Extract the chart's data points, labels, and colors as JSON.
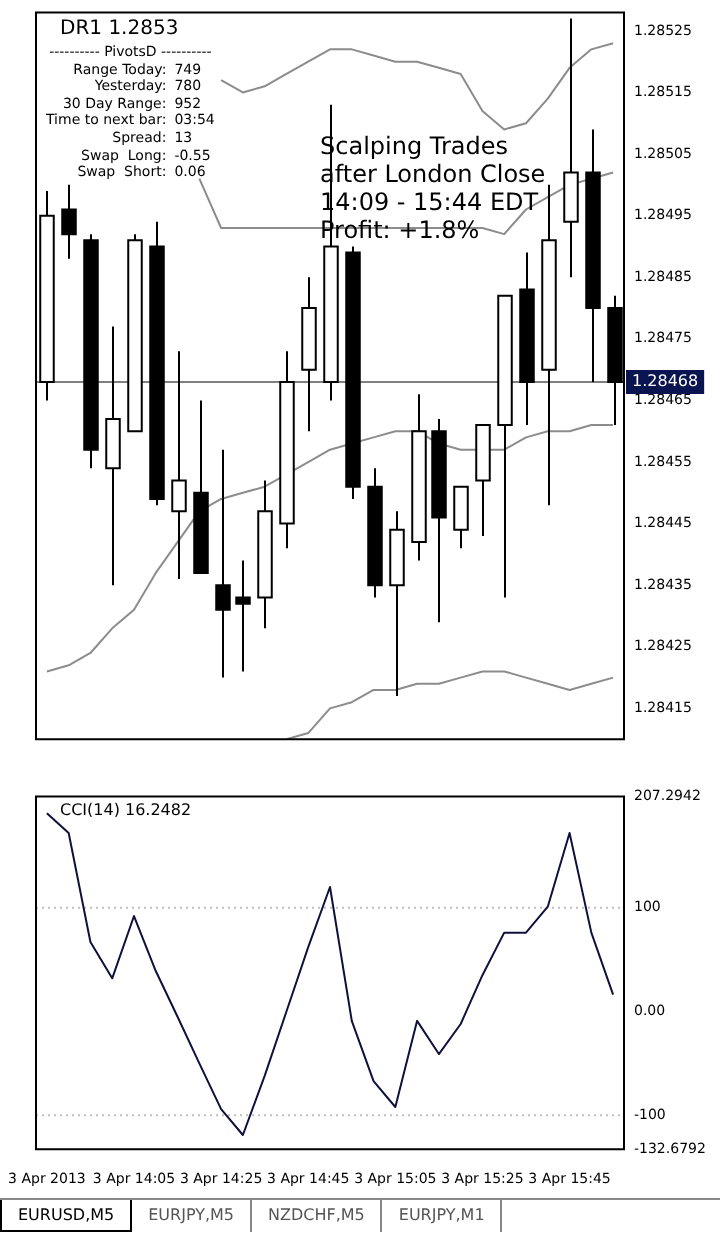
{
  "chart_data": [
    {
      "type": "candlestick",
      "title": "DR1 1.2853",
      "categories": [
        null,
        null,
        null,
        null,
        null,
        null,
        null,
        null,
        null,
        null,
        null,
        null,
        null,
        null,
        null,
        null,
        null,
        null,
        null,
        null,
        null,
        null,
        null,
        null,
        null,
        null,
        null
      ],
      "ohlc": [
        [
          1.28468,
          1.28499,
          1.28465,
          1.28495
        ],
        [
          1.28496,
          1.285,
          1.28488,
          1.28492
        ],
        [
          1.28491,
          1.28492,
          1.28454,
          1.28457
        ],
        [
          1.28454,
          1.28477,
          1.28435,
          1.28462
        ],
        [
          1.2846,
          1.28492,
          1.2846,
          1.28491
        ],
        [
          1.2849,
          1.28494,
          1.28448,
          1.28449
        ],
        [
          1.28447,
          1.28473,
          1.28436,
          1.28452
        ],
        [
          1.2845,
          1.28465,
          1.28437,
          1.28437
        ],
        [
          1.28435,
          1.28457,
          1.2842,
          1.28431
        ],
        [
          1.28433,
          1.28439,
          1.28421,
          1.28432
        ],
        [
          1.28433,
          1.28452,
          1.28428,
          1.28447
        ],
        [
          1.28445,
          1.28473,
          1.28441,
          1.28468
        ],
        [
          1.2847,
          1.28485,
          1.2846,
          1.2848
        ],
        [
          1.28468,
          1.28513,
          1.28465,
          1.2849
        ],
        [
          1.28489,
          1.2849,
          1.28449,
          1.28451
        ],
        [
          1.28451,
          1.28454,
          1.28433,
          1.28435
        ],
        [
          1.28435,
          1.28447,
          1.28417,
          1.28444
        ],
        [
          1.28442,
          1.28466,
          1.28439,
          1.2846
        ],
        [
          1.2846,
          1.28462,
          1.28429,
          1.28446
        ],
        [
          1.28444,
          1.28451,
          1.28441,
          1.28451
        ],
        [
          1.28452,
          1.28461,
          1.28443,
          1.28461
        ],
        [
          1.28461,
          1.28482,
          1.28433,
          1.28482
        ],
        [
          1.28483,
          1.28489,
          1.28461,
          1.28468
        ],
        [
          1.2847,
          1.285,
          1.28448,
          1.28491
        ],
        [
          1.28494,
          1.28527,
          1.28485,
          1.28502
        ],
        [
          1.28502,
          1.28509,
          1.28468,
          1.2848
        ],
        [
          1.2848,
          1.28482,
          1.28461,
          1.28468
        ]
      ],
      "series": [
        {
          "type": "line",
          "color": "#8c8c8c",
          "values": [
            null,
            null,
            null,
            null,
            null,
            null,
            null,
            null,
            1.28517,
            1.28515,
            1.28516,
            1.28518,
            1.2852,
            1.28522,
            1.28522,
            1.28521,
            1.2852,
            1.2852,
            1.28519,
            1.28518,
            1.28512,
            1.28509,
            1.2851,
            1.28514,
            1.28519,
            1.28522,
            1.28523
          ]
        },
        {
          "type": "line",
          "color": "#8c8c8c",
          "values": [
            null,
            null,
            null,
            null,
            null,
            null,
            null,
            1.28501,
            1.28493,
            1.28493,
            1.28493,
            1.28493,
            1.28493,
            1.28493,
            1.28493,
            1.28493,
            1.28493,
            1.28493,
            1.28493,
            1.28493,
            1.28493,
            1.28492,
            1.28496,
            1.28498,
            1.285,
            1.28501,
            1.28502
          ]
        },
        {
          "type": "line",
          "color": "#8c8c8c",
          "values": [
            1.28421,
            1.28422,
            1.28424,
            1.28428,
            1.28431,
            1.28437,
            1.28442,
            1.28447,
            1.28449,
            1.2845,
            1.28451,
            1.28453,
            1.28455,
            1.28457,
            1.28458,
            1.28459,
            1.2846,
            1.2846,
            1.28458,
            1.28457,
            1.28457,
            1.28457,
            1.28459,
            1.2846,
            1.2846,
            1.28461,
            1.28461
          ]
        },
        {
          "type": "line",
          "color": "#8c8c8c",
          "values": [
            null,
            null,
            null,
            null,
            null,
            null,
            null,
            null,
            null,
            null,
            null,
            1.2841,
            1.28411,
            1.28415,
            1.28416,
            1.28418,
            1.28418,
            1.28419,
            1.28419,
            1.2842,
            1.28421,
            1.28421,
            1.2842,
            1.28419,
            1.28418,
            1.28419,
            1.2842
          ]
        }
      ],
      "ylim": [
        1.2841,
        1.28528
      ],
      "yticks": [
        1.28415,
        1.28425,
        1.28435,
        1.28445,
        1.28455,
        1.28465,
        1.28475,
        1.28485,
        1.28495,
        1.28505,
        1.28515,
        1.28525
      ],
      "ref_lines": [
        {
          "axis": "y",
          "value": 1.28468,
          "label": "1.28468",
          "color": "#808080"
        }
      ],
      "annotations": [
        "---------- PivotsD ----------\nRange Today:\t749\nYesterday:\t780\n30 Day Range:\t952\nTime to next bar:\t03:54\nSpread:\t13\nSwap  Long:\t-0.55\nSwap  Short:\t0.06",
        "Scalping Trades\nafter London Close\n14:09 - 15:44 EDT\nProfit: +1.8%"
      ]
    },
    {
      "type": "line",
      "title": "CCI(14) 16.2482",
      "categories": [
        "3 Apr 2013",
        null,
        null,
        null,
        "3 Apr 14:05",
        null,
        null,
        null,
        "3 Apr 14:25",
        null,
        null,
        null,
        "3 Apr 14:45",
        null,
        null,
        null,
        "3 Apr 15:05",
        null,
        null,
        null,
        "3 Apr 15:25",
        null,
        null,
        null,
        "3 Apr 15:45",
        null,
        null
      ],
      "series": [
        {
          "color": "#10103c",
          "values": [
            191,
            172,
            67,
            32,
            92,
            39,
            -5,
            -50,
            -94,
            -119,
            -62,
            0,
            62,
            120,
            -9,
            -67,
            -92,
            -9,
            -41,
            -12,
            35,
            76,
            76,
            101,
            172,
            76,
            16.2482
          ]
        }
      ],
      "ylim": [
        -132.6792,
        207.2942
      ],
      "yticks": [
        207.2942,
        100,
        {
          "value": 0,
          "label": "0.00"
        },
        -100,
        -132.6792
      ],
      "ref_lines": [
        {
          "axis": "y",
          "value": 100,
          "color": "#c0c0c0",
          "line_style": "dotted"
        },
        {
          "axis": "y",
          "value": -100,
          "color": "#c0c0c0",
          "line_style": "dotted"
        }
      ],
      "annotations": [
        "EURUSD,M5",
        "EURJPY,M5",
        "NZDCHF,M5",
        "EURJPY,M1"
      ]
    }
  ]
}
